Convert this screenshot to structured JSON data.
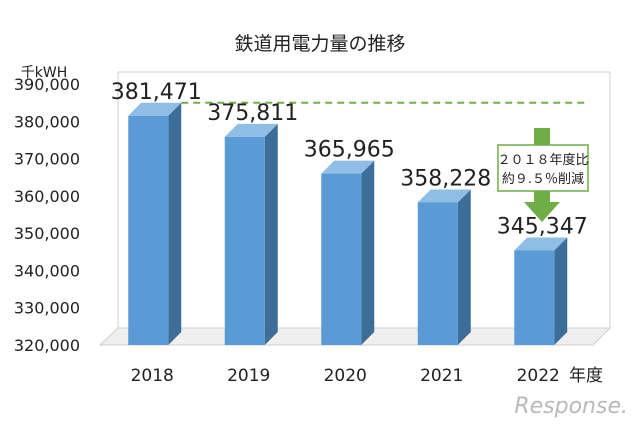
{
  "chart_data": {
    "type": "bar",
    "title": "鉄道用電力量の推移",
    "y_unit_label": "千kWH",
    "x_unit_label": "年度",
    "categories": [
      "2018",
      "2019",
      "2020",
      "2021",
      "2022"
    ],
    "values": [
      381471,
      375811,
      365965,
      358228,
      345347
    ],
    "value_labels": [
      "381,471",
      "375,811",
      "365,965",
      "358,228",
      "345,347"
    ],
    "ylim": [
      320000,
      390000
    ],
    "yticks": [
      "320,000",
      "330,000",
      "340,000",
      "350,000",
      "360,000",
      "370,000",
      "380,000",
      "390,000"
    ],
    "ytick_values": [
      320000,
      330000,
      340000,
      350000,
      360000,
      370000,
      380000,
      390000
    ],
    "reference_line_value": 381471,
    "annotation_lines": [
      "２０１８年度比",
      "約９.５％削減"
    ],
    "grid": false,
    "bar_style": "3d",
    "colors": {
      "bar_front": "#5b9bd5",
      "bar_side": "#3d6e9a",
      "bar_top": "#8fbde6",
      "reference_line": "#70ad47",
      "callout_border": "#70ad47",
      "arrow": "#70ad47"
    }
  },
  "watermark": "Response."
}
